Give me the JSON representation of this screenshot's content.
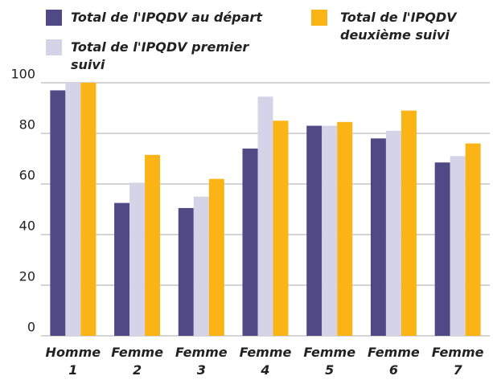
{
  "chart_data": {
    "type": "bar",
    "categories": [
      "Homme 1",
      "Femme 2",
      "Femme 3",
      "Femme 4",
      "Femme 5",
      "Femme 6",
      "Femme 7"
    ],
    "series": [
      {
        "name": "Total de l'IPQDV au départ",
        "color": "#4f4a85",
        "values": [
          97,
          52.5,
          50.5,
          74,
          83,
          78,
          68.5
        ]
      },
      {
        "name": "Total de l'IPQDV premier suivi",
        "color": "#d4d3e8",
        "values": [
          100,
          60.5,
          55,
          94.5,
          83,
          81,
          71
        ]
      },
      {
        "name": "Total de l'IPQDV deuxième suivi",
        "color": "#fbb415",
        "values": [
          100,
          71.5,
          62,
          85,
          84.5,
          89,
          76
        ]
      }
    ],
    "ylim": [
      0,
      100
    ],
    "yticks": [
      0,
      20,
      40,
      60,
      80,
      100
    ],
    "grid": true
  }
}
